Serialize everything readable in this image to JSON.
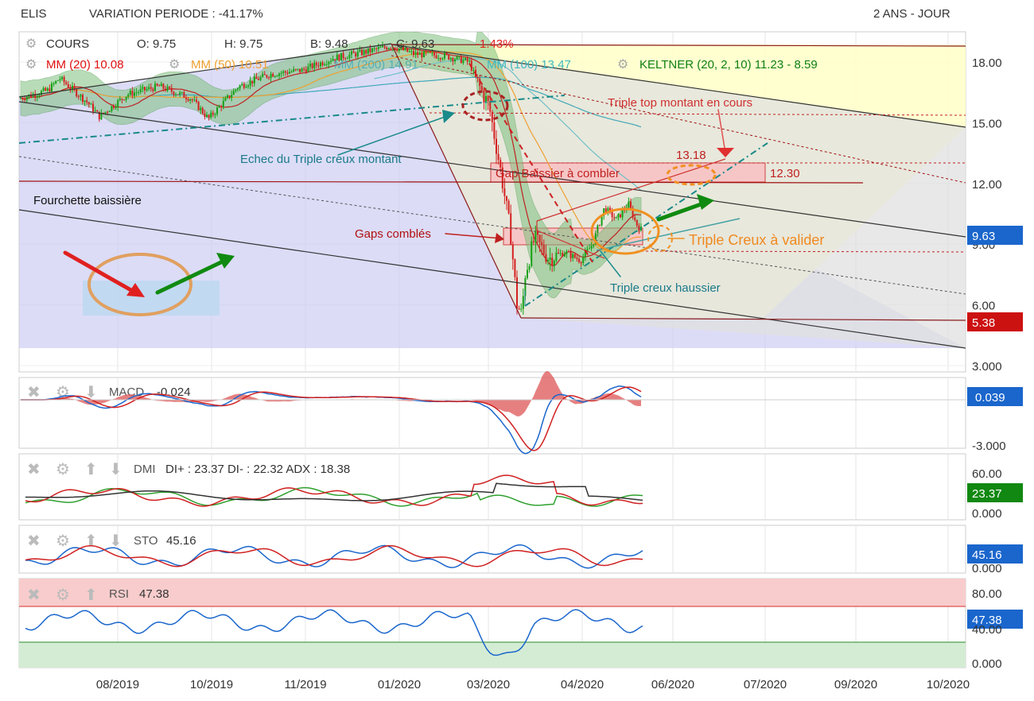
{
  "header": {
    "symbol": "ELIS",
    "variation": "VARIATION PERIODE : -41.17%",
    "period": "2 ANS - JOUR"
  },
  "legend": {
    "cours": "COURS",
    "open": "O: 9.75",
    "high": "H: 9.75",
    "low": "B: 9.48",
    "close": "C: 9.63",
    "change": "-1.43%",
    "mm20": "MM (20)  10.08",
    "mm50": "MM (50)  10.51",
    "mm200": "MM (200)  14.91",
    "mm100": "MM (100)  13.47",
    "keltner": "KELTNER (20, 2, 10)  11.23 - 8.59"
  },
  "annotations": {
    "triple_top": "Triple top montant en cours",
    "echec": "Echec du Triple creux montant",
    "gap_label": "Gap Baissier à combler",
    "gap_high": "13.18",
    "gap_low": "12.30",
    "fourchette": "Fourchette baissière",
    "gaps_combles": "Gaps comblés",
    "triple_creux_valider": "Triple Creux à valider",
    "triple_creux_haussier": "Triple creux haussier"
  },
  "price_axis": {
    "ticks": [
      "18.00",
      "15.00",
      "12.00",
      "9.00",
      "6.00",
      "3.000"
    ],
    "last_price": "9.63",
    "low_marker": "5.38"
  },
  "x_axis": {
    "ticks": [
      "08/2019",
      "10/2019",
      "11/2019",
      "01/2020",
      "03/2020",
      "04/2020",
      "06/2020",
      "07/2020",
      "09/2020",
      "10/2020"
    ]
  },
  "panels": {
    "macd": {
      "label": "MACD",
      "value": "-0.024",
      "badge": "0.039",
      "ticks": [
        "-3.000"
      ]
    },
    "dmi": {
      "label": "DMI",
      "value": "DI+ : 23.37 DI- : 22.32 ADX : 18.38",
      "badge": "23.37",
      "ticks": [
        "60.00",
        "0.000"
      ]
    },
    "sto": {
      "label": "STO",
      "value": "45.16",
      "badge": "45.16",
      "ticks": [
        "0.000"
      ]
    },
    "rsi": {
      "label": "RSI",
      "value": "47.38",
      "badge": "47.38",
      "ticks": [
        "80.00",
        "40.00",
        "0.000"
      ]
    }
  },
  "colors": {
    "up": "#16a016",
    "down": "#d42020",
    "mm20": "#e01010",
    "mm50": "#f0a030",
    "mm200": "#40a8b8",
    "keltner": "#108010",
    "badge_blue": "#1a66cc",
    "badge_red": "#cc1111",
    "badge_green": "#118811"
  },
  "chart_data": {
    "type": "candlestick",
    "title": "ELIS",
    "period": "2 ANS - JOUR",
    "x": [
      "2019-07",
      "2019-08",
      "2019-09",
      "2019-10",
      "2019-11",
      "2019-12",
      "2020-01",
      "2020-02",
      "2020-02-20",
      "2020-03-05",
      "2020-03-18",
      "2020-04-01",
      "2020-04-15",
      "2020-05-01",
      "2020-05-15",
      "2020-05-20"
    ],
    "close": [
      16.2,
      16.5,
      16.0,
      15.3,
      17.0,
      18.0,
      18.8,
      18.2,
      16.0,
      12.0,
      6.0,
      8.5,
      8.5,
      10.5,
      10.0,
      9.63
    ],
    "ylim": [
      3.0,
      19.5
    ],
    "series": [
      {
        "name": "MM (20)",
        "last": 10.08
      },
      {
        "name": "MM (50)",
        "last": 10.51
      },
      {
        "name": "MM (200)",
        "last": 14.91
      },
      {
        "name": "MM (100)",
        "last": 13.47
      }
    ],
    "keltner": [
      11.23,
      8.59
    ],
    "last_ohlc": {
      "open": 9.75,
      "high": 9.75,
      "low": 9.48,
      "close": 9.63
    },
    "levels": {
      "gap_low": 12.3,
      "gap_high": 13.18,
      "low": 5.38
    },
    "indicators": {
      "macd": {
        "value": -0.024,
        "badge": 0.039
      },
      "dmi": {
        "di_plus": 23.37,
        "di_minus": 22.32,
        "adx": 18.38
      },
      "sto": 45.16,
      "rsi": 47.38
    }
  }
}
